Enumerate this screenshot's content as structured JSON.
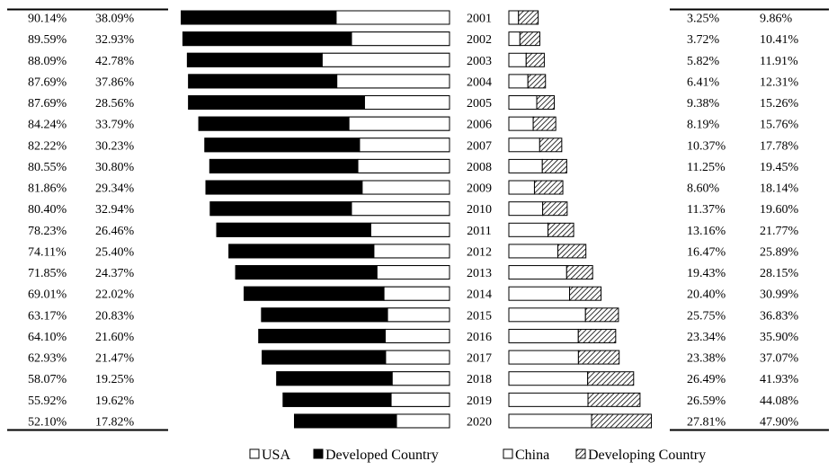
{
  "chart_data": {
    "type": "bar",
    "years": [
      "2001",
      "2002",
      "2003",
      "2004",
      "2005",
      "2006",
      "2007",
      "2008",
      "2009",
      "2010",
      "2011",
      "2012",
      "2013",
      "2014",
      "2015",
      "2016",
      "2017",
      "2018",
      "2019",
      "2020"
    ],
    "left_panel": {
      "series": [
        {
          "name": "Developed Country",
          "values": [
            90.14,
            89.59,
            88.09,
            87.69,
            87.69,
            84.24,
            82.22,
            80.55,
            81.86,
            80.4,
            78.23,
            74.11,
            71.85,
            69.01,
            63.17,
            64.1,
            62.93,
            58.07,
            55.92,
            52.1
          ]
        },
        {
          "name": "USA",
          "values": [
            38.09,
            32.93,
            42.78,
            37.86,
            28.56,
            33.79,
            30.23,
            30.8,
            29.34,
            32.94,
            26.46,
            25.4,
            24.37,
            22.02,
            20.83,
            21.6,
            21.47,
            19.25,
            19.62,
            17.82
          ]
        }
      ],
      "labels_col1": [
        "90.14%",
        "89.59%",
        "88.09%",
        "87.69%",
        "87.69%",
        "84.24%",
        "82.22%",
        "80.55%",
        "81.86%",
        "80.40%",
        "78.23%",
        "74.11%",
        "71.85%",
        "69.01%",
        "63.17%",
        "64.10%",
        "62.93%",
        "58.07%",
        "55.92%",
        "52.10%"
      ],
      "labels_col2": [
        "38.09%",
        "32.93%",
        "42.78%",
        "37.86%",
        "28.56%",
        "33.79%",
        "30.23%",
        "30.80%",
        "29.34%",
        "32.94%",
        "26.46%",
        "25.40%",
        "24.37%",
        "22.02%",
        "20.83%",
        "21.60%",
        "21.47%",
        "19.25%",
        "19.62%",
        "17.82%"
      ]
    },
    "right_panel": {
      "series": [
        {
          "name": "China",
          "values": [
            3.25,
            3.72,
            5.82,
            6.41,
            9.38,
            8.19,
            10.37,
            11.25,
            8.6,
            11.37,
            13.16,
            16.47,
            19.43,
            20.4,
            25.75,
            23.34,
            23.38,
            26.49,
            26.59,
            27.81
          ]
        },
        {
          "name": "Developing Country",
          "values": [
            9.86,
            10.41,
            11.91,
            12.31,
            15.26,
            15.76,
            17.78,
            19.45,
            18.14,
            19.6,
            21.77,
            25.89,
            28.15,
            30.99,
            36.83,
            35.9,
            37.07,
            41.93,
            44.08,
            47.9
          ]
        }
      ],
      "labels_col1": [
        "3.25%",
        "3.72%",
        "5.82%",
        "6.41%",
        "9.38%",
        "8.19%",
        "10.37%",
        "11.25%",
        "8.60%",
        "11.37%",
        "13.16%",
        "16.47%",
        "19.43%",
        "20.40%",
        "25.75%",
        "23.34%",
        "23.38%",
        "26.49%",
        "26.59%",
        "27.81%"
      ],
      "labels_col2": [
        "9.86%",
        "10.41%",
        "11.91%",
        "12.31%",
        "15.26%",
        "15.76%",
        "17.78%",
        "19.45%",
        "18.14%",
        "19.60%",
        "21.77%",
        "25.89%",
        "28.15%",
        "30.99%",
        "36.83%",
        "35.90%",
        "37.07%",
        "41.93%",
        "44.08%",
        "47.90%"
      ]
    },
    "legend": [
      "USA",
      "Developed Country",
      "China",
      "Developing Country"
    ],
    "colors": {
      "developed": "#000000",
      "usa": "#ffffff",
      "china": "#ffffff",
      "developing_pattern": "hatched"
    }
  }
}
